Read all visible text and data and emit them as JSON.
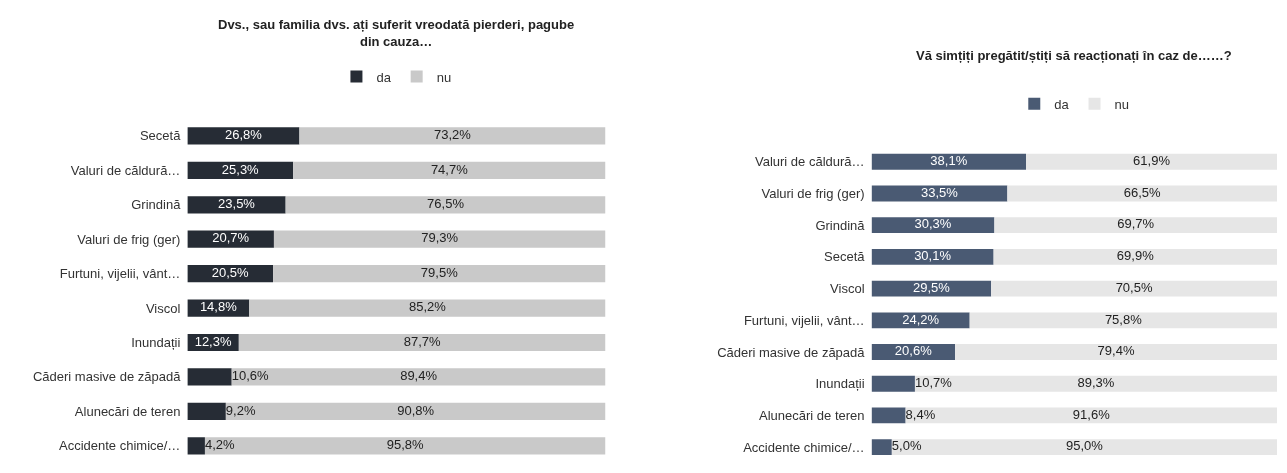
{
  "chart_data": [
    {
      "type": "bar",
      "title": "Dvs., sau familia dvs. ați suferit vreodată pierderi, pagube din cauza…",
      "orientation": "horizontal",
      "stacked": true,
      "legend": "top",
      "categories": [
        "Secetă",
        "Valuri de căldură…",
        "Grindină",
        "Valuri de frig (ger)",
        "Furtuni, vijelii, vânt…",
        "Viscol",
        "Inundații",
        "Căderi masive de zăpadă",
        "Alunecări de teren",
        "Accidente chimice/…"
      ],
      "series": [
        {
          "name": "da",
          "color": "#262c35",
          "values": [
            26.8,
            25.3,
            23.5,
            20.7,
            20.5,
            14.8,
            12.3,
            10.6,
            9.2,
            4.2
          ],
          "value_labels": [
            "26,8%",
            "25,3%",
            "23,5%",
            "20,7%",
            "20,5%",
            "14,8%",
            "12,3%",
            "10,6%",
            "9,2%",
            "4,2%"
          ]
        },
        {
          "name": "nu",
          "color": "#c9c9c9",
          "values": [
            73.2,
            74.7,
            76.5,
            79.3,
            79.5,
            85.2,
            87.7,
            89.4,
            90.8,
            95.8
          ],
          "value_labels": [
            "73,2%",
            "74,7%",
            "76,5%",
            "79,3%",
            "79,5%",
            "85,2%",
            "87,7%",
            "89,4%",
            "90,8%",
            "95,8%"
          ]
        }
      ]
    },
    {
      "type": "bar",
      "title": "Vă simțiți pregătit/știți să reacționați în caz de……?",
      "orientation": "horizontal",
      "stacked": true,
      "legend": "top",
      "categories": [
        "Valuri de căldură…",
        "Valuri de frig (ger)",
        "Grindină",
        "Secetă",
        "Viscol",
        "Furtuni, vijelii, vânt…",
        "Căderi masive de zăpadă",
        "Inundații",
        "Alunecări de teren",
        "Accidente chimice/…"
      ],
      "series": [
        {
          "name": "da",
          "color": "#4a5a73",
          "values": [
            38.1,
            33.5,
            30.3,
            30.1,
            29.5,
            24.2,
            20.6,
            10.7,
            8.4,
            5.0
          ],
          "value_labels": [
            "38,1%",
            "33,5%",
            "30,3%",
            "30,1%",
            "29,5%",
            "24,2%",
            "20,6%",
            "10,7%",
            "8,4%",
            "5,0%"
          ]
        },
        {
          "name": "nu",
          "color": "#e6e6e6",
          "values": [
            61.9,
            66.5,
            69.7,
            69.9,
            70.5,
            75.8,
            79.4,
            89.3,
            91.6,
            95.0
          ],
          "value_labels": [
            "61,9%",
            "66,5%",
            "69,7%",
            "69,9%",
            "70,5%",
            "75,8%",
            "79,4%",
            "89,3%",
            "91,6%",
            "95,0%"
          ]
        }
      ]
    }
  ]
}
